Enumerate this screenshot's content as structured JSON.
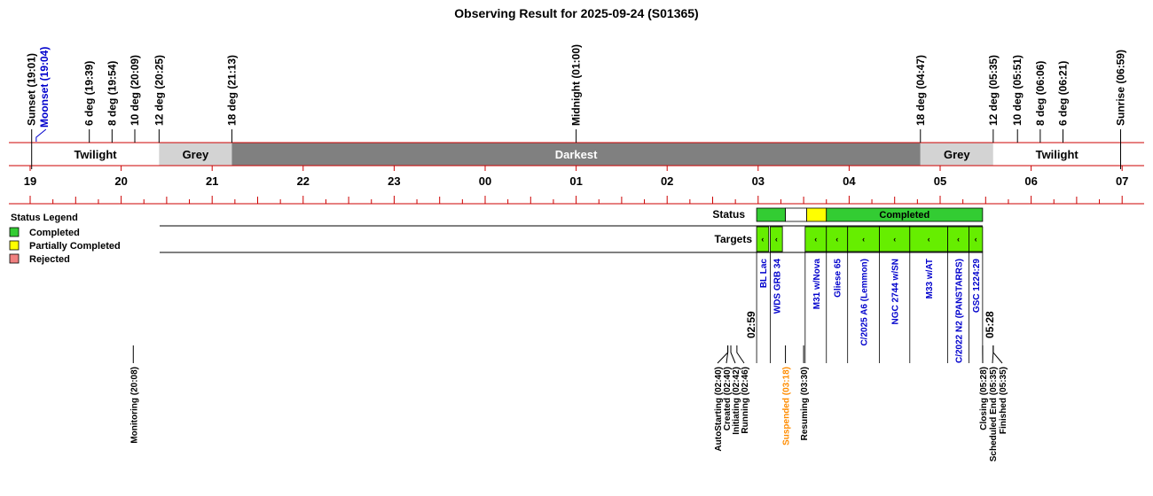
{
  "title": "Observing Result for 2025-09-24 (S01365)",
  "colors": {
    "red_line": "#cc0000",
    "twilight": "#ffffff",
    "grey": "#d3d3d3",
    "darkest": "#808080",
    "status_green": "#33cc33",
    "status_yellow": "#ffff00",
    "target_green": "#66ee00",
    "target_label": "#0000cc",
    "moonset": "#0000cc",
    "suspended": "#ff8c00",
    "legend_completed": "#33cc33",
    "legend_partial": "#ffff00",
    "legend_rejected": "#f08080"
  },
  "top_events": [
    {
      "label": "Sunset (19:01)",
      "t": "19:01",
      "color": "black"
    },
    {
      "label": "Moonset (19:04)",
      "t": "19:04",
      "color": "blue"
    },
    {
      "label": "6 deg (19:39)",
      "t": "19:39",
      "color": "black"
    },
    {
      "label": "8 deg (19:54)",
      "t": "19:54",
      "color": "black"
    },
    {
      "label": "10 deg (20:09)",
      "t": "20:09",
      "color": "black"
    },
    {
      "label": "12 deg (20:25)",
      "t": "20:25",
      "color": "black"
    },
    {
      "label": "18 deg (21:13)",
      "t": "21:13",
      "color": "black"
    },
    {
      "label": "Midnight (01:00)",
      "t": "01:00",
      "color": "black"
    },
    {
      "label": "18 deg (04:47)",
      "t": "04:47",
      "color": "black"
    },
    {
      "label": "12 deg (05:35)",
      "t": "05:35",
      "color": "black"
    },
    {
      "label": "10 deg (05:51)",
      "t": "05:51",
      "color": "black"
    },
    {
      "label": "8 deg (06:06)",
      "t": "06:06",
      "color": "black"
    },
    {
      "label": "6 deg (06:21)",
      "t": "06:21",
      "color": "black"
    },
    {
      "label": "Sunrise (06:59)",
      "t": "06:59",
      "color": "black"
    }
  ],
  "sky_bands": [
    {
      "label": "Twilight",
      "start": "19:01",
      "end": "20:25",
      "kind": "twilight"
    },
    {
      "label": "Grey",
      "start": "20:25",
      "end": "21:13",
      "kind": "grey"
    },
    {
      "label": "Darkest",
      "start": "21:13",
      "end": "04:47",
      "kind": "darkest"
    },
    {
      "label": "Grey",
      "start": "04:47",
      "end": "05:35",
      "kind": "grey"
    },
    {
      "label": "Twilight",
      "start": "05:35",
      "end": "06:59",
      "kind": "twilight"
    }
  ],
  "hour_labels": [
    "19",
    "20",
    "21",
    "22",
    "23",
    "00",
    "01",
    "02",
    "03",
    "04",
    "05",
    "06",
    "07"
  ],
  "legend": {
    "title": "Status Legend",
    "items": [
      {
        "label": "Completed",
        "color": "#33cc33"
      },
      {
        "label": "Partially Completed",
        "color": "#ffff00"
      },
      {
        "label": "Rejected",
        "color": "#f08080"
      }
    ]
  },
  "status_row": {
    "label": "Status",
    "segments": [
      {
        "start": "02:59",
        "end": "03:18",
        "kind": "green",
        "text": ""
      },
      {
        "start": "03:18",
        "end": "03:32",
        "kind": "white",
        "text": ""
      },
      {
        "start": "03:32",
        "end": "03:45",
        "kind": "yellow",
        "text": ""
      },
      {
        "start": "03:45",
        "end": "05:28",
        "kind": "green",
        "text": "Completed"
      }
    ]
  },
  "targets_row": {
    "label": "Targets",
    "segments": [
      {
        "start": "02:59",
        "end": "03:07",
        "mark": "‹",
        "name": "BL Lac"
      },
      {
        "start": "03:08",
        "end": "03:16",
        "mark": "‹",
        "name": "WDS GRB 34"
      },
      {
        "start": "03:31",
        "end": "03:45",
        "mark": "‹",
        "name": "M31 w/Nova"
      },
      {
        "start": "03:45",
        "end": "03:59",
        "mark": "‹",
        "name": "Gliese 65"
      },
      {
        "start": "03:59",
        "end": "04:20",
        "mark": "‹",
        "name": "C/2025 A6 (Lemmon)"
      },
      {
        "start": "04:20",
        "end": "04:40",
        "mark": "‹",
        "name": "NGC 2744 w/SN"
      },
      {
        "start": "04:40",
        "end": "05:05",
        "mark": "‹",
        "name": "M33 w/AT"
      },
      {
        "start": "05:05",
        "end": "05:19",
        "mark": "‹",
        "name": "C/2022 N2 (PANSTARRS)"
      },
      {
        "start": "05:19",
        "end": "05:28",
        "mark": "‹",
        "name": "GSC 1224:29"
      }
    ]
  },
  "block_times": {
    "start": "02:59",
    "end": "05:28"
  },
  "bottom_events": [
    {
      "label": "Monitoring (20:08)",
      "t": "20:08",
      "color": "black"
    },
    {
      "label": "AutoStarting (02:40)",
      "t": "02:40",
      "color": "black"
    },
    {
      "label": "Created (02:40)",
      "t": "02:40",
      "color": "black"
    },
    {
      "label": "Initiating (02:42)",
      "t": "02:42",
      "color": "black"
    },
    {
      "label": "Running (02:46)",
      "t": "02:46",
      "color": "black"
    },
    {
      "label": "Suspended (03:18)",
      "t": "03:18",
      "color": "orange"
    },
    {
      "label": "Resuming (03:30)",
      "t": "03:30",
      "color": "black"
    },
    {
      "label": "Closing (05:28)",
      "t": "05:28",
      "color": "black"
    },
    {
      "label": "Scheduled End (05:35)",
      "t": "05:35",
      "color": "black"
    },
    {
      "label": "Finished (05:35)",
      "t": "05:35",
      "color": "black"
    }
  ]
}
